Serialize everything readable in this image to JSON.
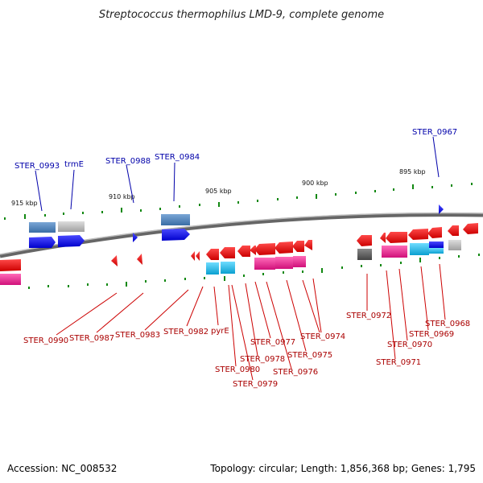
{
  "title": "Streptococcus thermophilus LMD-9, complete genome",
  "footer": {
    "accession": "Accession: NC_008532",
    "topology": "Topology: circular; Length: 1,856,368 bp; Genes: 1,795"
  },
  "scale_labels": [
    "915 kbp",
    "910 kbp",
    "905 kbp",
    "900 kbp",
    "895 kbp"
  ],
  "top_labels": [
    "STER_0993",
    "trmE",
    "STER_0988",
    "STER_0984",
    "STER_0967"
  ],
  "bottom_labels": [
    "STER_0990",
    "STER_0987",
    "STER_0983",
    "STER_0982",
    "pyrE",
    "STER_0980",
    "STER_0979",
    "STER_0978",
    "STER_0977",
    "STER_0976",
    "STER_0975",
    "STER_0974",
    "STER_0972",
    "STER_0971",
    "STER_0970",
    "STER_0969",
    "STER_0968"
  ],
  "colors": {
    "backbone": "#888888",
    "forward_cds": "#0000ee",
    "reverse_cds": "#ee0000",
    "cog_steelblue": "#4a7fb5",
    "cog_gray": "#b8b8b8",
    "cog_magenta": "#e0208a",
    "cog_cyan": "#10b0e0",
    "top_label": "#0000aa",
    "bottom_label": "#aa0000",
    "tick": "#118811"
  }
}
